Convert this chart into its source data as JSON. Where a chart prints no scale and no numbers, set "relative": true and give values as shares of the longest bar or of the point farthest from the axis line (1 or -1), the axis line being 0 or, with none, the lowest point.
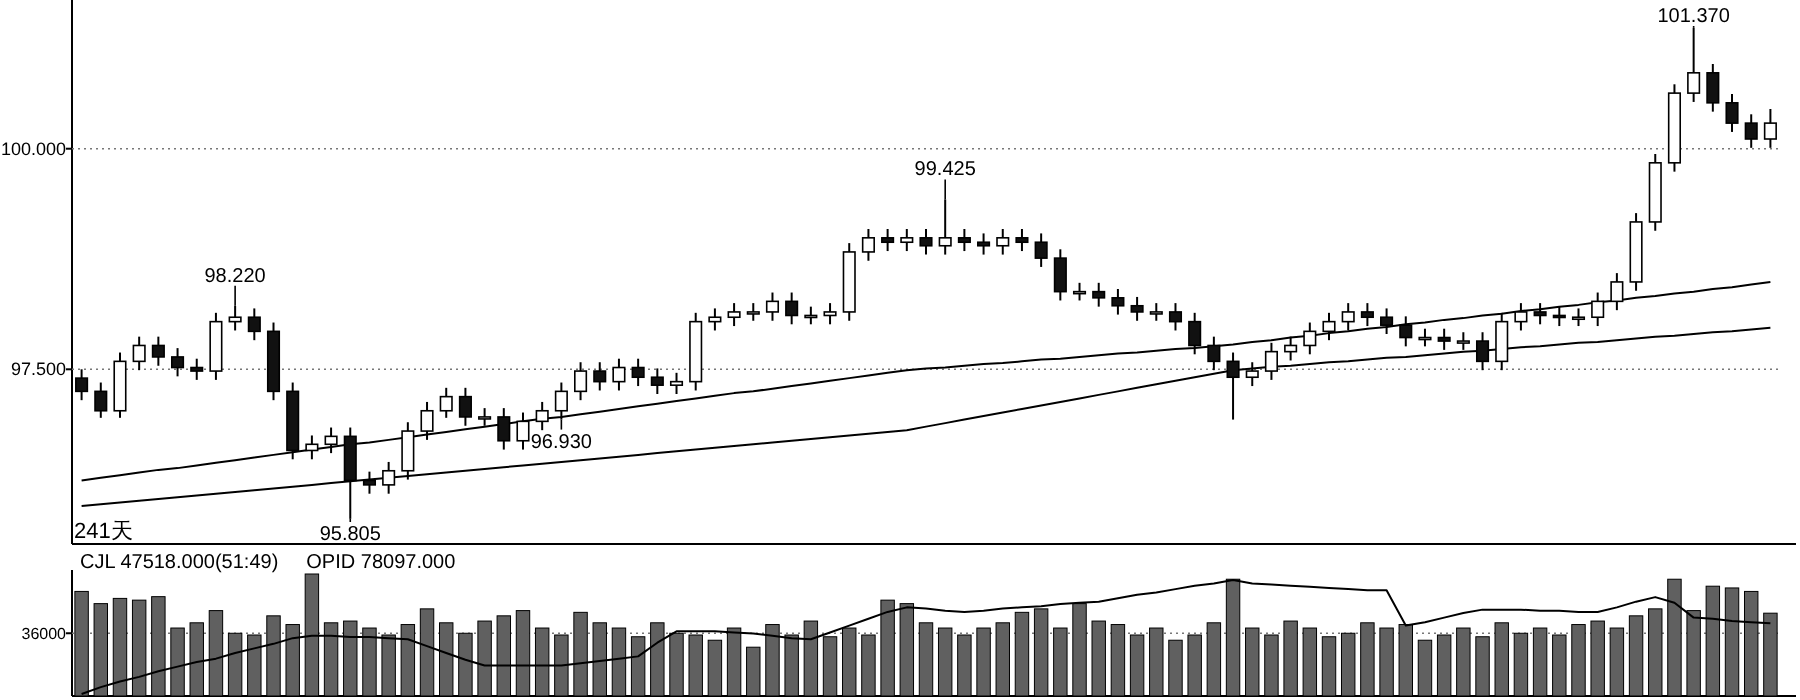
{
  "chart_data": [
    {
      "type": "candlestick",
      "categories": [
        null,
        null,
        null,
        null,
        null,
        null,
        null,
        null,
        null,
        null,
        null,
        null,
        null,
        null,
        null,
        null,
        null,
        null,
        null,
        null,
        null,
        null,
        null,
        null,
        null,
        null,
        null,
        null,
        null,
        null,
        null,
        null,
        null,
        null,
        null,
        null,
        null,
        null,
        null,
        null,
        null,
        null,
        null,
        null,
        null,
        null,
        null,
        null,
        null,
        null,
        null,
        null,
        null,
        null,
        null,
        null,
        null,
        null,
        null,
        null,
        null,
        null,
        null,
        null,
        null,
        null,
        null,
        null,
        null,
        null,
        null,
        null,
        null,
        null,
        null,
        null,
        null,
        null,
        null,
        null,
        null,
        null,
        null,
        null,
        null,
        null,
        null,
        null,
        null
      ],
      "ohlc": [
        [
          97.4,
          97.5,
          97.15,
          97.25
        ],
        [
          97.25,
          97.35,
          96.95,
          97.03
        ],
        [
          97.03,
          97.69,
          96.95,
          97.59
        ],
        [
          97.59,
          97.87,
          97.49,
          97.77
        ],
        [
          97.77,
          97.87,
          97.54,
          97.64
        ],
        [
          97.64,
          97.74,
          97.42,
          97.52
        ],
        [
          97.52,
          97.62,
          97.38,
          97.48
        ],
        [
          97.48,
          98.14,
          97.38,
          98.04
        ],
        [
          98.04,
          98.22,
          97.94,
          98.09
        ],
        [
          98.09,
          98.19,
          97.83,
          97.93
        ],
        [
          97.93,
          98.03,
          97.15,
          97.25
        ],
        [
          97.25,
          97.35,
          96.48,
          96.58
        ],
        [
          96.58,
          96.75,
          96.48,
          96.65
        ],
        [
          96.65,
          96.84,
          96.55,
          96.74
        ],
        [
          96.74,
          96.84,
          95.805,
          96.24
        ],
        [
          96.24,
          96.34,
          96.09,
          96.19
        ],
        [
          96.19,
          96.45,
          96.09,
          96.35
        ],
        [
          96.35,
          96.9,
          96.25,
          96.8
        ],
        [
          96.8,
          97.13,
          96.7,
          97.03
        ],
        [
          97.03,
          97.29,
          96.95,
          97.19
        ],
        [
          97.19,
          97.29,
          96.86,
          96.96
        ],
        [
          96.96,
          97.06,
          96.86,
          96.96
        ],
        [
          96.96,
          97.06,
          96.59,
          96.69
        ],
        [
          96.69,
          97.01,
          96.59,
          96.91
        ],
        [
          96.91,
          97.13,
          96.81,
          97.03
        ],
        [
          97.03,
          97.35,
          96.93,
          97.25
        ],
        [
          97.25,
          97.58,
          97.15,
          97.48
        ],
        [
          97.48,
          97.58,
          97.26,
          97.36
        ],
        [
          97.36,
          97.62,
          97.26,
          97.52
        ],
        [
          97.52,
          97.62,
          97.31,
          97.41
        ],
        [
          97.41,
          97.51,
          97.22,
          97.32
        ],
        [
          97.32,
          97.46,
          97.22,
          97.36
        ],
        [
          97.36,
          98.14,
          97.26,
          98.04
        ],
        [
          98.04,
          98.19,
          97.94,
          98.09
        ],
        [
          98.09,
          98.25,
          97.99,
          98.15
        ],
        [
          98.15,
          98.25,
          98.05,
          98.15
        ],
        [
          98.15,
          98.37,
          98.05,
          98.27
        ],
        [
          98.27,
          98.37,
          98.01,
          98.11
        ],
        [
          98.11,
          98.21,
          98.01,
          98.11
        ],
        [
          98.11,
          98.25,
          98.01,
          98.15
        ],
        [
          98.15,
          98.93,
          98.05,
          98.83
        ],
        [
          98.83,
          99.09,
          98.73,
          98.99
        ],
        [
          98.99,
          99.09,
          98.84,
          98.94
        ],
        [
          98.94,
          99.09,
          98.84,
          98.99
        ],
        [
          98.99,
          99.09,
          98.8,
          98.9
        ],
        [
          98.9,
          99.425,
          98.8,
          98.99
        ],
        [
          98.99,
          99.09,
          98.84,
          98.94
        ],
        [
          98.94,
          99.04,
          98.8,
          98.9
        ],
        [
          98.9,
          99.09,
          98.8,
          98.99
        ],
        [
          98.99,
          99.09,
          98.84,
          98.94
        ],
        [
          98.94,
          99.04,
          98.66,
          98.76
        ],
        [
          98.76,
          98.86,
          98.28,
          98.38
        ],
        [
          98.38,
          98.48,
          98.28,
          98.38
        ],
        [
          98.38,
          98.48,
          98.21,
          98.31
        ],
        [
          98.31,
          98.41,
          98.12,
          98.22
        ],
        [
          98.22,
          98.32,
          98.05,
          98.15
        ],
        [
          98.15,
          98.25,
          98.05,
          98.15
        ],
        [
          98.15,
          98.25,
          97.94,
          98.04
        ],
        [
          98.04,
          98.14,
          97.67,
          97.77
        ],
        [
          97.77,
          97.87,
          97.49,
          97.59
        ],
        [
          97.59,
          97.69,
          96.93,
          97.41
        ],
        [
          97.41,
          97.58,
          97.31,
          97.48
        ],
        [
          97.48,
          97.8,
          97.38,
          97.7
        ],
        [
          97.7,
          97.87,
          97.6,
          97.77
        ],
        [
          97.77,
          98.03,
          97.67,
          97.93
        ],
        [
          97.93,
          98.14,
          97.83,
          98.04
        ],
        [
          98.04,
          98.25,
          97.94,
          98.15
        ],
        [
          98.15,
          98.25,
          97.99,
          98.09
        ],
        [
          98.09,
          98.19,
          97.9,
          98.0
        ],
        [
          98.0,
          98.1,
          97.76,
          97.86
        ],
        [
          97.86,
          97.96,
          97.76,
          97.86
        ],
        [
          97.86,
          97.96,
          97.72,
          97.82
        ],
        [
          97.82,
          97.92,
          97.72,
          97.82
        ],
        [
          97.82,
          97.92,
          97.49,
          97.59
        ],
        [
          97.59,
          98.14,
          97.49,
          98.04
        ],
        [
          98.04,
          98.25,
          97.94,
          98.15
        ],
        [
          98.15,
          98.25,
          98.01,
          98.11
        ],
        [
          98.11,
          98.21,
          97.99,
          98.09
        ],
        [
          98.09,
          98.19,
          97.99,
          98.09
        ],
        [
          98.09,
          98.37,
          97.99,
          98.27
        ],
        [
          98.27,
          98.59,
          98.17,
          98.49
        ],
        [
          98.49,
          99.27,
          98.39,
          99.17
        ],
        [
          99.17,
          99.94,
          99.07,
          99.84
        ],
        [
          99.84,
          100.73,
          99.74,
          100.63
        ],
        [
          100.63,
          101.37,
          100.53,
          100.86
        ],
        [
          100.86,
          100.96,
          100.42,
          100.52
        ],
        [
          100.52,
          100.62,
          100.19,
          100.29
        ],
        [
          100.29,
          100.39,
          100.01,
          100.11
        ],
        [
          100.11,
          100.45,
          100.01,
          100.29
        ]
      ],
      "series": [
        {
          "type": "line",
          "color": "#000000",
          "values": [
            95.95,
            95.97,
            95.99,
            96.01,
            96.03,
            96.05,
            96.07,
            96.09,
            96.11,
            96.13,
            96.15,
            96.17,
            96.19,
            96.21,
            96.23,
            96.25,
            96.27,
            96.29,
            96.31,
            96.33,
            96.35,
            96.37,
            96.39,
            96.41,
            96.43,
            96.45,
            96.47,
            96.49,
            96.51,
            96.53,
            96.55,
            96.57,
            96.59,
            96.61,
            96.63,
            96.65,
            96.67,
            96.69,
            96.71,
            96.73,
            96.75,
            96.77,
            96.79,
            96.81,
            96.85,
            96.89,
            96.93,
            96.97,
            97.01,
            97.05,
            97.09,
            97.13,
            97.17,
            97.21,
            97.25,
            97.29,
            97.33,
            97.37,
            97.41,
            97.45,
            97.49,
            97.51,
            97.53,
            97.54,
            97.56,
            97.58,
            97.59,
            97.61,
            97.63,
            97.64,
            97.66,
            97.68,
            97.7,
            97.71,
            97.73,
            97.75,
            97.76,
            97.78,
            97.8,
            97.81,
            97.83,
            97.85,
            97.87,
            97.88,
            97.9,
            97.92,
            97.93,
            97.95,
            97.97
          ]
        },
        {
          "type": "line",
          "color": "#000000",
          "values": [
            96.24,
            96.27,
            96.3,
            96.33,
            96.36,
            96.38,
            96.41,
            96.44,
            96.47,
            96.5,
            96.53,
            96.56,
            96.59,
            96.62,
            96.65,
            96.67,
            96.7,
            96.73,
            96.76,
            96.79,
            96.82,
            96.85,
            96.88,
            96.91,
            96.94,
            96.96,
            96.99,
            97.02,
            97.05,
            97.08,
            97.11,
            97.14,
            97.17,
            97.2,
            97.23,
            97.25,
            97.28,
            97.31,
            97.34,
            97.37,
            97.4,
            97.43,
            97.46,
            97.49,
            97.51,
            97.52,
            97.54,
            97.56,
            97.57,
            97.59,
            97.61,
            97.62,
            97.64,
            97.66,
            97.68,
            97.69,
            97.71,
            97.73,
            97.74,
            97.76,
            97.78,
            97.81,
            97.83,
            97.86,
            97.88,
            97.91,
            97.93,
            97.96,
            97.98,
            98.01,
            98.03,
            98.06,
            98.08,
            98.11,
            98.13,
            98.16,
            98.18,
            98.21,
            98.23,
            98.26,
            98.28,
            98.31,
            98.33,
            98.36,
            98.38,
            98.41,
            98.43,
            98.46,
            98.49
          ]
        }
      ],
      "ylim": [
        95.52,
        101.64
      ],
      "yticks": [
        {
          "value": 97.5,
          "label": "97.500"
        },
        {
          "value": 100,
          "label": "100.000"
        }
      ],
      "grid": "y",
      "annotations": [
        {
          "text": "98.220",
          "y": 98.22
        },
        {
          "text": "95.805",
          "y": 95.805
        },
        {
          "text": "99.425",
          "y": 99.425
        },
        {
          "text": "96.930",
          "y": 96.93
        },
        {
          "text": "101.370",
          "y": 101.37
        },
        "241天"
      ]
    },
    {
      "type": "bar",
      "categories": [
        null,
        null,
        null,
        null,
        null,
        null,
        null,
        null,
        null,
        null,
        null,
        null,
        null,
        null,
        null,
        null,
        null,
        null,
        null,
        null,
        null,
        null,
        null,
        null,
        null,
        null,
        null,
        null,
        null,
        null,
        null,
        null,
        null,
        null,
        null,
        null,
        null,
        null,
        null,
        null,
        null,
        null,
        null,
        null,
        null,
        null,
        null,
        null,
        null,
        null,
        null,
        null,
        null,
        null,
        null,
        null,
        null,
        null,
        null,
        null,
        null,
        null,
        null,
        null,
        null,
        null,
        null,
        null,
        null,
        null,
        null,
        null,
        null,
        null,
        null,
        null,
        null,
        null,
        null,
        null,
        null,
        null,
        null,
        null,
        null,
        null,
        null,
        null,
        null
      ],
      "series": [
        {
          "type": "bar",
          "color": "#606060",
          "values": [
            60000,
            53000,
            56000,
            55000,
            57000,
            39000,
            42000,
            49000,
            36000,
            35000,
            46000,
            41000,
            70000,
            42000,
            43000,
            39000,
            35000,
            41000,
            50000,
            42000,
            36000,
            43000,
            46000,
            49000,
            39000,
            35000,
            48000,
            42000,
            39000,
            34000,
            42000,
            36000,
            35000,
            32000,
            39000,
            28000,
            41000,
            35000,
            43000,
            34000,
            39000,
            35000,
            55000,
            53000,
            42000,
            39000,
            35000,
            39000,
            42000,
            48000,
            50000,
            39000,
            53000,
            43000,
            41000,
            35000,
            39000,
            32000,
            35000,
            42000,
            67000,
            39000,
            35000,
            43000,
            39000,
            34000,
            36000,
            42000,
            39000,
            41000,
            32000,
            35000,
            39000,
            34000,
            42000,
            36000,
            39000,
            35000,
            41000,
            43000,
            39000,
            46000,
            50000,
            67000,
            49000,
            63000,
            62000,
            60000,
            47518
          ]
        }
      ],
      "ylim": [
        0,
        70000
      ],
      "yticks": [
        36000
      ],
      "grid": "y",
      "annotations": [
        "CJL  47518.000(51:49)",
        "OPID 78097.000"
      ]
    },
    {
      "type": "line",
      "relative": true,
      "categories": [
        null,
        null,
        null,
        null,
        null,
        null,
        null,
        null,
        null,
        null,
        null,
        null,
        null,
        null,
        null,
        null,
        null,
        null,
        null,
        null,
        null,
        null,
        null,
        null,
        null,
        null,
        null,
        null,
        null,
        null,
        null,
        null,
        null,
        null,
        null,
        null,
        null,
        null,
        null,
        null,
        null,
        null,
        null,
        null,
        null,
        null,
        null,
        null,
        null,
        null,
        null,
        null,
        null,
        null,
        null,
        null,
        null,
        null,
        null,
        null,
        null,
        null,
        null,
        null,
        null,
        null,
        null,
        null,
        null,
        null,
        null,
        null,
        null,
        null,
        null,
        null,
        null,
        null,
        null,
        null,
        null,
        null,
        null,
        null,
        null,
        null,
        null,
        null,
        null
      ],
      "series": [
        {
          "type": "line",
          "color": "#000000",
          "values": [
            0,
            0.06,
            0.11,
            0.15,
            0.2,
            0.24,
            0.28,
            0.31,
            0.36,
            0.4,
            0.44,
            0.49,
            0.51,
            0.51,
            0.5,
            0.5,
            0.49,
            0.48,
            0.42,
            0.36,
            0.3,
            0.25,
            0.25,
            0.25,
            0.25,
            0.25,
            0.27,
            0.29,
            0.31,
            0.33,
            0.45,
            0.55,
            0.55,
            0.55,
            0.54,
            0.53,
            0.51,
            0.49,
            0.48,
            0.54,
            0.6,
            0.66,
            0.72,
            0.76,
            0.75,
            0.73,
            0.72,
            0.73,
            0.75,
            0.76,
            0.77,
            0.79,
            0.8,
            0.81,
            0.84,
            0.87,
            0.89,
            0.92,
            0.95,
            0.97,
            1,
            0.97,
            0.96,
            0.95,
            0.94,
            0.93,
            0.92,
            0.91,
            0.91,
            0.6,
            0.63,
            0.67,
            0.71,
            0.74,
            0.74,
            0.74,
            0.73,
            0.73,
            0.72,
            0.72,
            0.76,
            0.81,
            0.85,
            0.8,
            0.67,
            0.66,
            0.64,
            0.63,
            0.62
          ]
        }
      ]
    }
  ]
}
